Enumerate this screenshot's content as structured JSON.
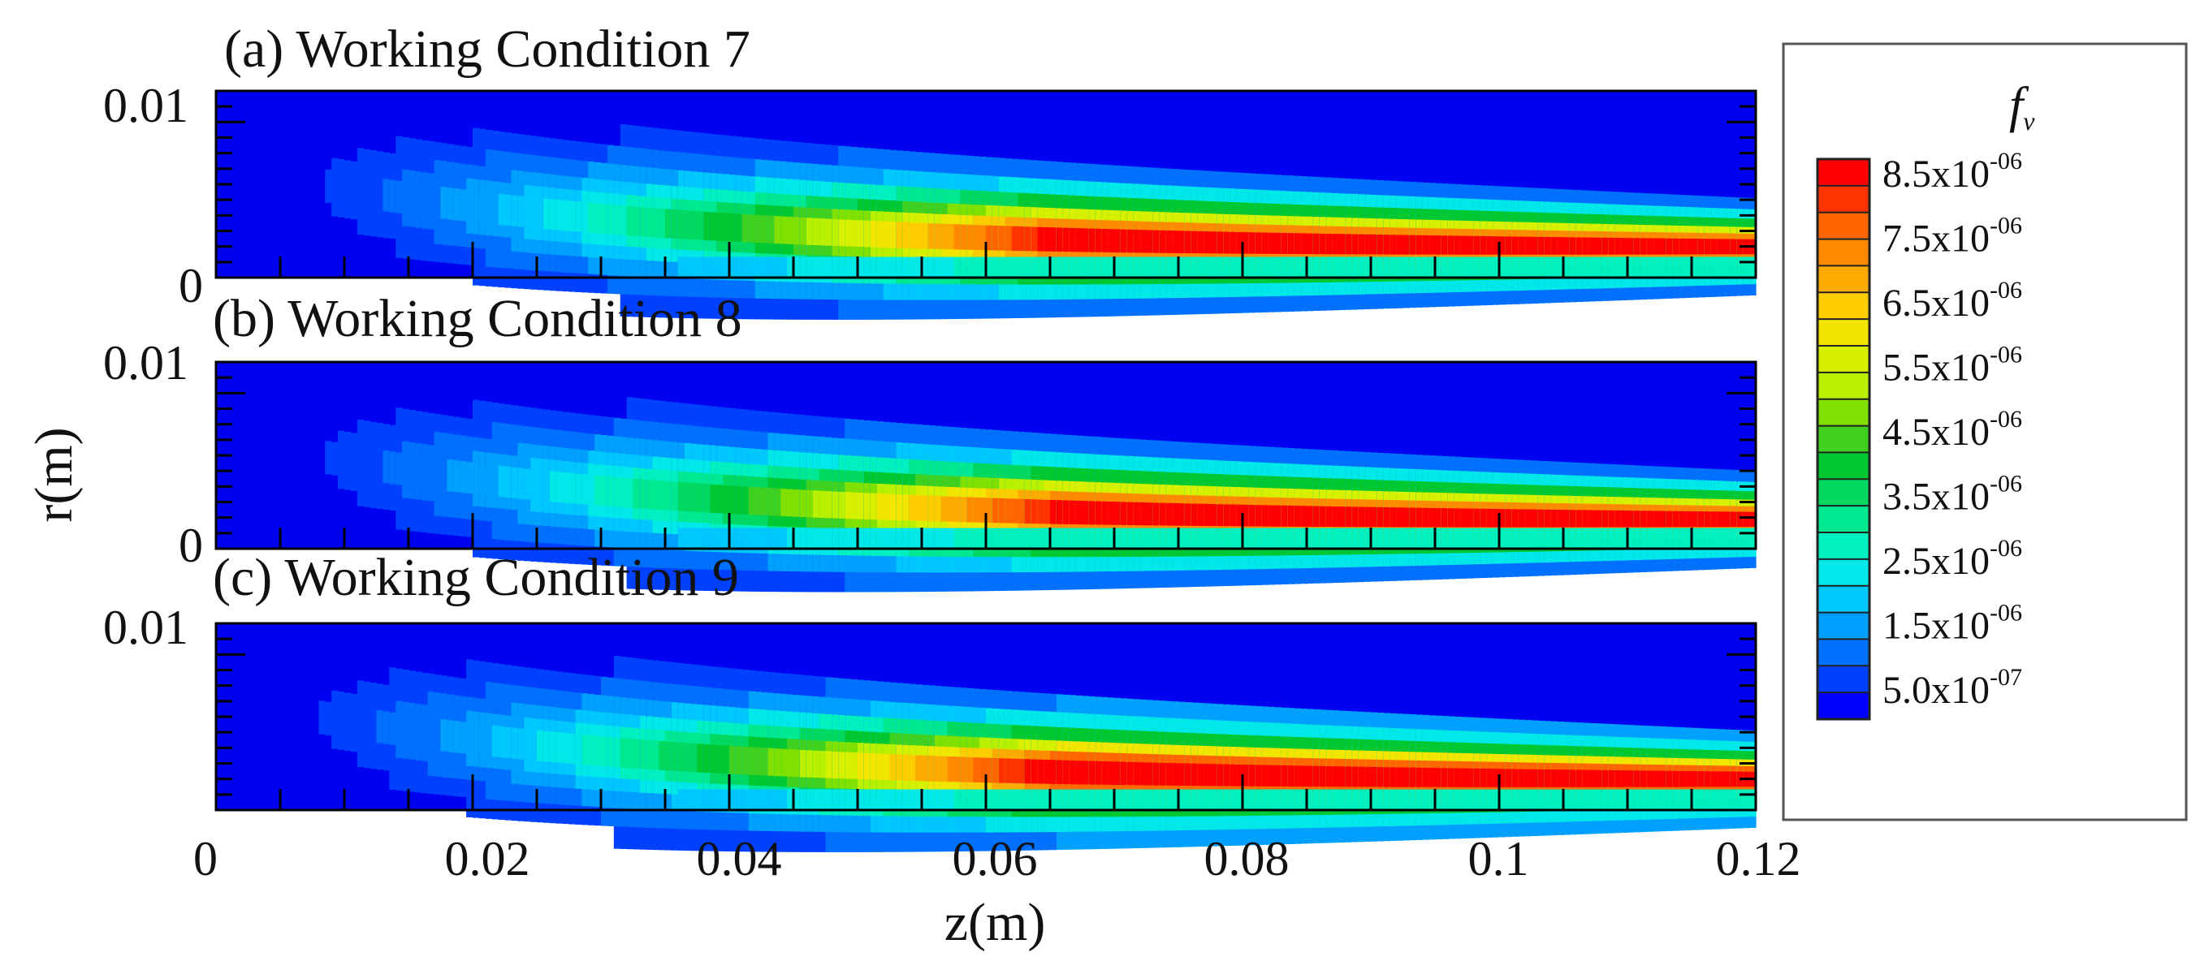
{
  "chart_data": [
    {
      "type": "heatmap",
      "title": "(a) Working Condition 7",
      "ylim": [
        0,
        0.012
      ],
      "xlim": [
        0,
        0.12
      ],
      "y_tick_labels": [
        "0.01",
        "0"
      ],
      "y_ticks": [
        0.01,
        0
      ],
      "flame_profile": {
        "sheet_r_start": 0.0073,
        "sheet_r_end": 0.0019,
        "max_fv": 8.7e-06,
        "min_fv_at_axis": 1.5e-06
      }
    },
    {
      "type": "heatmap",
      "title": "(b) Working Condition 8",
      "ylim": [
        0,
        0.012
      ],
      "xlim": [
        0,
        0.12
      ],
      "y_tick_labels": [
        "0.01",
        "0"
      ],
      "y_ticks": [
        0.01,
        0
      ],
      "flame_profile": {
        "sheet_r_start": 0.0073,
        "sheet_r_end": 0.0018,
        "max_fv": 8.5e-06,
        "min_fv_at_axis": 1.5e-06
      }
    },
    {
      "type": "heatmap",
      "title": "(c) Working Condition 9",
      "ylim": [
        0,
        0.012
      ],
      "xlim": [
        0,
        0.12
      ],
      "y_tick_labels": [
        "0.01"
      ],
      "y_ticks": [
        0.01
      ],
      "flame_profile": {
        "sheet_r_start": 0.0073,
        "sheet_r_end": 0.0019,
        "max_fv": 8.9e-06,
        "min_fv_at_axis": 1.5e-06
      }
    }
  ],
  "x_axis": {
    "label": "z(m)",
    "ticks": [
      0,
      0.02,
      0.04,
      0.06,
      0.08,
      0.1,
      0.12
    ],
    "tick_labels": [
      "0",
      "0.02",
      "0.04",
      "0.06",
      "0.08",
      "0.1",
      "0.12"
    ]
  },
  "y_axis": {
    "label": "r(m)"
  },
  "colorbar": {
    "title_main": "f",
    "title_sub": "v",
    "levels": [
      "8.5x10",
      "7.5x10",
      "6.5x10",
      "5.5x10",
      "4.5x10",
      "3.5x10",
      "2.5x10",
      "1.5x10",
      "5.0x10"
    ],
    "exponents": [
      "-06",
      "-06",
      "-06",
      "-06",
      "-06",
      "-06",
      "-06",
      "-06",
      "-07"
    ],
    "colors": [
      "#ff0000",
      "#ff3300",
      "#ff6600",
      "#ff8a00",
      "#ffaa00",
      "#ffcc00",
      "#f2e600",
      "#d6f000",
      "#b8f000",
      "#80e000",
      "#40d020",
      "#00c830",
      "#00d860",
      "#00e890",
      "#00f0c0",
      "#00e8e8",
      "#00c8ff",
      "#00a0ff",
      "#0070ff",
      "#0040ff",
      "#0000ff"
    ]
  }
}
